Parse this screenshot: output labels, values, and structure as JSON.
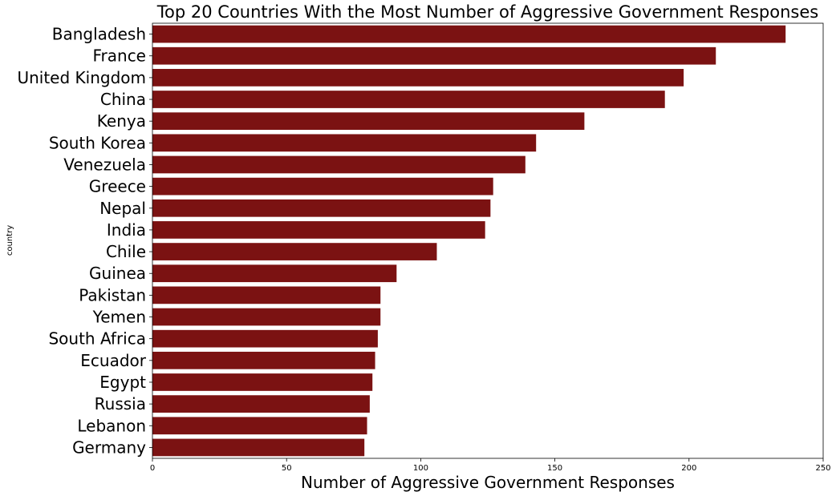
{
  "chart_data": {
    "type": "bar",
    "orientation": "horizontal",
    "title": "Top 20 Countries With the Most Number of Aggressive Government Responses",
    "xlabel": "Number of Aggressive Government Responses",
    "ylabel": "country",
    "xlim": [
      0,
      250
    ],
    "xticks": [
      0,
      50,
      100,
      150,
      200,
      250
    ],
    "bar_color": "#7b1212",
    "grid": false,
    "categories": [
      "Bangladesh",
      "France",
      "United Kingdom",
      "China",
      "Kenya",
      "South Korea",
      "Venezuela",
      "Greece",
      "Nepal",
      "India",
      "Chile",
      "Guinea",
      "Pakistan",
      "Yemen",
      "South Africa",
      "Ecuador",
      "Egypt",
      "Russia",
      "Lebanon",
      "Germany"
    ],
    "values": [
      236,
      210,
      198,
      191,
      161,
      143,
      139,
      127,
      126,
      124,
      106,
      91,
      85,
      85,
      84,
      83,
      82,
      81,
      80,
      79
    ]
  }
}
